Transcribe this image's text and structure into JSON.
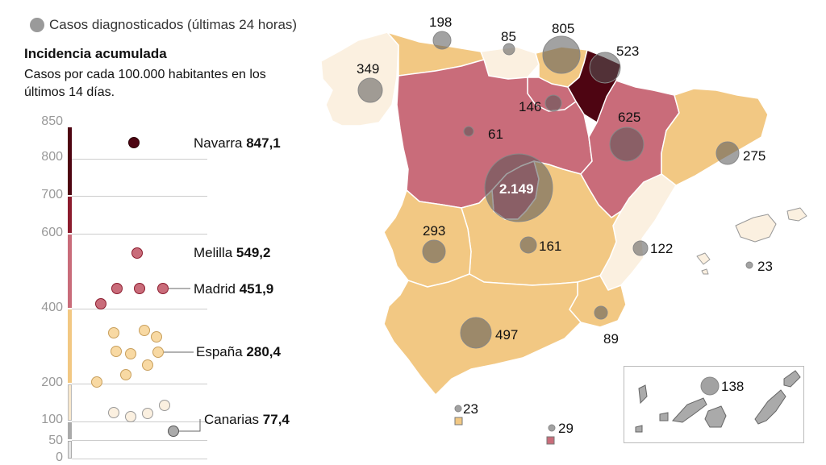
{
  "legend": {
    "cases_label": "Casos diagnosticados (últimas 24 horas)"
  },
  "panel": {
    "title": "Incidencia acumulada",
    "subtitle": "Casos por cada 100.000 habitantes en los últimos 14 días."
  },
  "scale": {
    "ticks": [
      "850",
      "800",
      "700",
      "600",
      "400",
      "200",
      "100",
      "50",
      "0"
    ],
    "colors": {
      "c850": "#4e0512",
      "c700": "#8c1c2e",
      "c600": "#c96c7a",
      "c400": "#f2c883",
      "c100": "#f8e7cc",
      "c0": "#cfcfcf"
    }
  },
  "highlighted": [
    {
      "name": "Navarra",
      "value": "847,1"
    },
    {
      "name": "Melilla",
      "value": "549,2"
    },
    {
      "name": "Madrid",
      "value": "451,9"
    },
    {
      "name": "España",
      "value": "280,4"
    },
    {
      "name": "Canarias",
      "value": "77,4"
    }
  ],
  "cases": {
    "galicia": "349",
    "asturias": "198",
    "cantabria": "85",
    "pais_vasco": "805",
    "navarra": "523",
    "la_rioja": "146",
    "castilla_leon": "61",
    "aragon": "625",
    "cataluna": "275",
    "madrid": "2.149",
    "extremadura": "293",
    "castilla_la_mancha": "161",
    "valencia": "122",
    "baleares": "23",
    "andalucia": "497",
    "murcia": "89",
    "ceuta": "23",
    "melilla": "29",
    "canarias": "138"
  }
}
